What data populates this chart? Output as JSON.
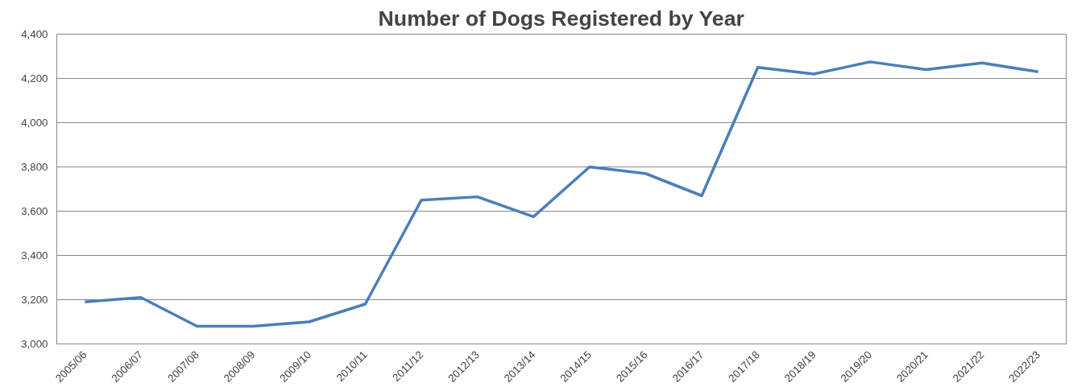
{
  "chart_data": {
    "type": "line",
    "title": "Number of Dogs Registered by Year",
    "categories": [
      "2005/06",
      "2006/07",
      "2007/08",
      "2008/09",
      "2009/10",
      "2010/11",
      "2011/12",
      "2012/13",
      "2013/14",
      "2014/15",
      "2015/16",
      "2016/17",
      "2017/18",
      "2018/19",
      "2019/20",
      "2020/21",
      "2021/22",
      "2022/23"
    ],
    "series": [
      {
        "color": "#4a7ebb",
        "values": [
          3190,
          3210,
          3080,
          3080,
          3100,
          3180,
          3650,
          3665,
          3575,
          3800,
          3770,
          3670,
          4250,
          4220,
          4275,
          4240,
          4270,
          4230
        ]
      }
    ],
    "ylim": [
      3000,
      4400
    ],
    "yticks": [
      {
        "value": 3000,
        "label": "3,000"
      },
      {
        "value": 3200,
        "label": "3,200"
      },
      {
        "value": 3400,
        "label": "3,400"
      },
      {
        "value": 3600,
        "label": "3,600"
      },
      {
        "value": 3800,
        "label": "3,800"
      },
      {
        "value": 4000,
        "label": "4,000"
      },
      {
        "value": 4200,
        "label": "4,200"
      },
      {
        "value": 4400,
        "label": "4,400"
      }
    ],
    "grid": "y",
    "marker": "none",
    "line_style": "solid"
  }
}
